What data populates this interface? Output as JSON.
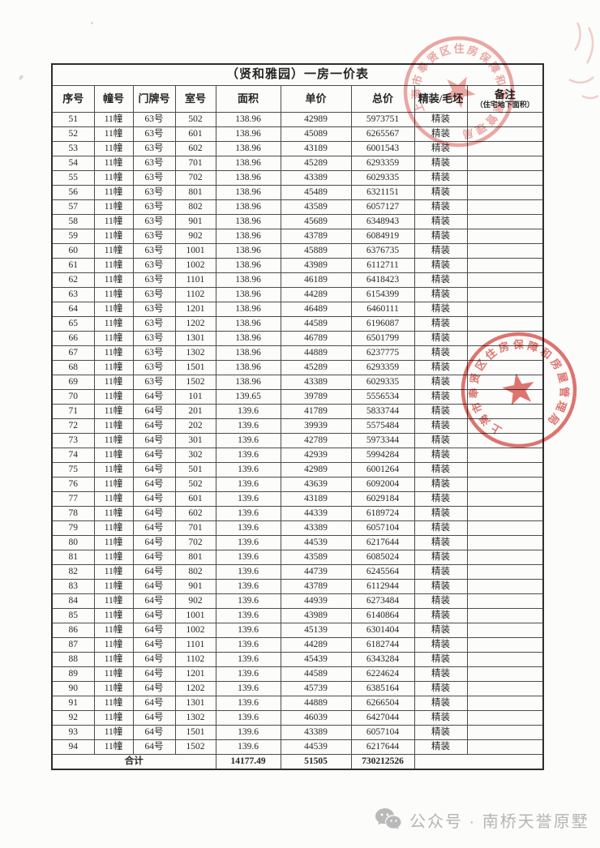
{
  "table": {
    "title": "（贤和雅园）一房一价表",
    "headers": [
      "序号",
      "幢号",
      "门牌号",
      "室号",
      "面积",
      "单价",
      "总价",
      "精装/毛坯"
    ],
    "remark_header": {
      "line1": "备注",
      "line2": "（住宅地下面积）"
    },
    "rows": [
      [
        "51",
        "11幢",
        "63号",
        "502",
        "138.96",
        "42989",
        "5973751",
        "精装",
        ""
      ],
      [
        "52",
        "11幢",
        "63号",
        "601",
        "138.96",
        "45089",
        "6265567",
        "精装",
        ""
      ],
      [
        "53",
        "11幢",
        "63号",
        "602",
        "138.96",
        "43189",
        "6001543",
        "精装",
        ""
      ],
      [
        "54",
        "11幢",
        "63号",
        "701",
        "138.96",
        "45289",
        "6293359",
        "精装",
        ""
      ],
      [
        "55",
        "11幢",
        "63号",
        "702",
        "138.96",
        "43389",
        "6029335",
        "精装",
        ""
      ],
      [
        "56",
        "11幢",
        "63号",
        "801",
        "138.96",
        "45489",
        "6321151",
        "精装",
        ""
      ],
      [
        "57",
        "11幢",
        "63号",
        "802",
        "138.96",
        "43589",
        "6057127",
        "精装",
        ""
      ],
      [
        "58",
        "11幢",
        "63号",
        "901",
        "138.96",
        "45689",
        "6348943",
        "精装",
        ""
      ],
      [
        "59",
        "11幢",
        "63号",
        "902",
        "138.96",
        "43789",
        "6084919",
        "精装",
        ""
      ],
      [
        "60",
        "11幢",
        "63号",
        "1001",
        "138.96",
        "45889",
        "6376735",
        "精装",
        ""
      ],
      [
        "61",
        "11幢",
        "63号",
        "1002",
        "138.96",
        "43989",
        "6112711",
        "精装",
        ""
      ],
      [
        "62",
        "11幢",
        "63号",
        "1101",
        "138.96",
        "46189",
        "6418423",
        "精装",
        ""
      ],
      [
        "63",
        "11幢",
        "63号",
        "1102",
        "138.96",
        "44289",
        "6154399",
        "精装",
        ""
      ],
      [
        "64",
        "11幢",
        "63号",
        "1201",
        "138.96",
        "46489",
        "6460111",
        "精装",
        ""
      ],
      [
        "65",
        "11幢",
        "63号",
        "1202",
        "138.96",
        "44589",
        "6196087",
        "精装",
        ""
      ],
      [
        "66",
        "11幢",
        "63号",
        "1301",
        "138.96",
        "46789",
        "6501799",
        "精装",
        ""
      ],
      [
        "67",
        "11幢",
        "63号",
        "1302",
        "138.96",
        "44889",
        "6237775",
        "精装",
        ""
      ],
      [
        "68",
        "11幢",
        "63号",
        "1501",
        "138.96",
        "45289",
        "6293359",
        "精装",
        ""
      ],
      [
        "69",
        "11幢",
        "63号",
        "1502",
        "138.96",
        "43389",
        "6029335",
        "精装",
        ""
      ],
      [
        "70",
        "11幢",
        "64号",
        "101",
        "139.65",
        "39789",
        "5556534",
        "精装",
        ""
      ],
      [
        "71",
        "11幢",
        "64号",
        "201",
        "139.6",
        "41789",
        "5833744",
        "精装",
        ""
      ],
      [
        "72",
        "11幢",
        "64号",
        "202",
        "139.6",
        "39939",
        "5575484",
        "精装",
        ""
      ],
      [
        "73",
        "11幢",
        "64号",
        "301",
        "139.6",
        "42789",
        "5973344",
        "精装",
        ""
      ],
      [
        "74",
        "11幢",
        "64号",
        "302",
        "139.6",
        "42939",
        "5994284",
        "精装",
        ""
      ],
      [
        "75",
        "11幢",
        "64号",
        "501",
        "139.6",
        "42989",
        "6001264",
        "精装",
        ""
      ],
      [
        "76",
        "11幢",
        "64号",
        "502",
        "139.6",
        "43639",
        "6092004",
        "精装",
        ""
      ],
      [
        "77",
        "11幢",
        "64号",
        "601",
        "139.6",
        "43189",
        "6029184",
        "精装",
        ""
      ],
      [
        "78",
        "11幢",
        "64号",
        "602",
        "139.6",
        "44339",
        "6189724",
        "精装",
        ""
      ],
      [
        "79",
        "11幢",
        "64号",
        "701",
        "139.6",
        "43389",
        "6057104",
        "精装",
        ""
      ],
      [
        "80",
        "11幢",
        "64号",
        "702",
        "139.6",
        "44539",
        "6217644",
        "精装",
        ""
      ],
      [
        "81",
        "11幢",
        "64号",
        "801",
        "139.6",
        "43589",
        "6085024",
        "精装",
        ""
      ],
      [
        "82",
        "11幢",
        "64号",
        "802",
        "139.6",
        "44739",
        "6245564",
        "精装",
        ""
      ],
      [
        "83",
        "11幢",
        "64号",
        "901",
        "139.6",
        "43789",
        "6112944",
        "精装",
        ""
      ],
      [
        "84",
        "11幢",
        "64号",
        "902",
        "139.6",
        "44939",
        "6273484",
        "精装",
        ""
      ],
      [
        "85",
        "11幢",
        "64号",
        "1001",
        "139.6",
        "43989",
        "6140864",
        "精装",
        ""
      ],
      [
        "86",
        "11幢",
        "64号",
        "1002",
        "139.6",
        "45139",
        "6301404",
        "精装",
        ""
      ],
      [
        "87",
        "11幢",
        "64号",
        "1101",
        "139.6",
        "44289",
        "6182744",
        "精装",
        ""
      ],
      [
        "88",
        "11幢",
        "64号",
        "1102",
        "139.6",
        "45439",
        "6343284",
        "精装",
        ""
      ],
      [
        "89",
        "11幢",
        "64号",
        "1201",
        "139.6",
        "44589",
        "6224624",
        "精装",
        ""
      ],
      [
        "90",
        "11幢",
        "64号",
        "1202",
        "139.6",
        "45739",
        "6385164",
        "精装",
        ""
      ],
      [
        "91",
        "11幢",
        "64号",
        "1301",
        "139.6",
        "44889",
        "6266504",
        "精装",
        ""
      ],
      [
        "92",
        "11幢",
        "64号",
        "1302",
        "139.6",
        "46039",
        "6427044",
        "精装",
        ""
      ],
      [
        "93",
        "11幢",
        "64号",
        "1501",
        "139.6",
        "43389",
        "6057104",
        "精装",
        ""
      ],
      [
        "94",
        "11幢",
        "64号",
        "1502",
        "139.6",
        "44539",
        "6217644",
        "精装",
        ""
      ]
    ],
    "total": {
      "label": "合计",
      "area": "14177.49",
      "unit_price": "51505",
      "total_price": "730212526"
    }
  },
  "stamps": {
    "agency": "上海市奉贤区住房保障和房屋管理局",
    "color": "#d9534e"
  },
  "footer": {
    "wechat_label": "公众号 · 南桥天誉原墅"
  }
}
